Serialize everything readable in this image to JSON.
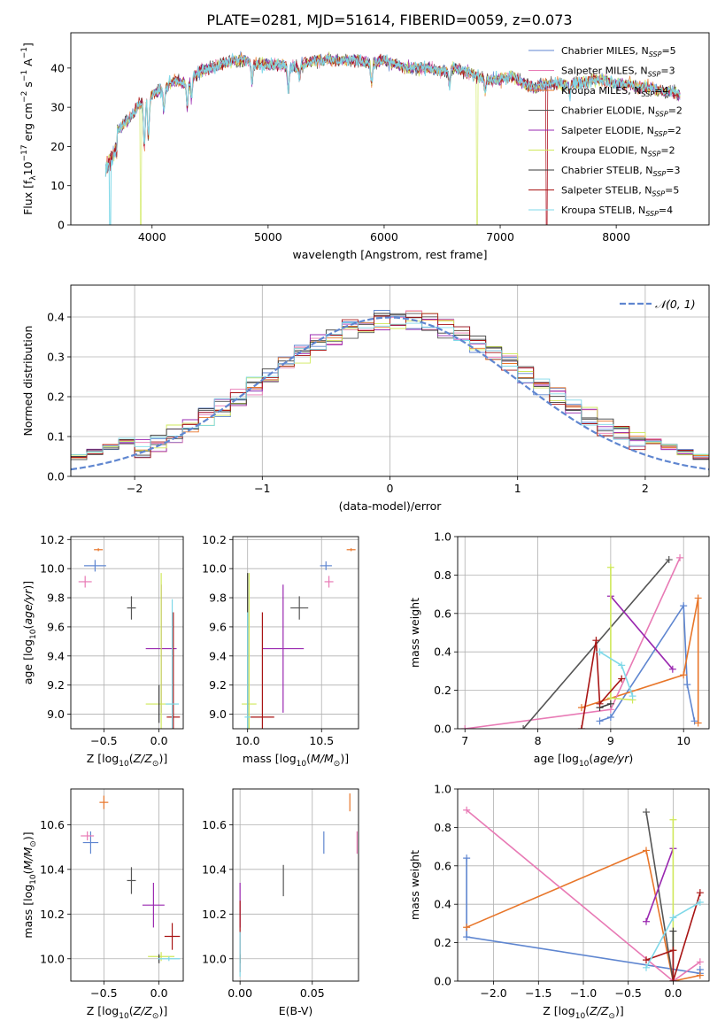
{
  "title": "PLATE=0281, MJD=51614, FIBERID=0059, z=0.073",
  "colors": {
    "c0": "#5f86d0",
    "c1": "#e8762a",
    "c2": "#e87ab5",
    "c3": "#555555",
    "c4": "#9a28b0",
    "c5": "#cfe85a",
    "c6": "#3a3a3a",
    "c7": "#a81414",
    "c8": "#7fd8e8"
  },
  "chart_data": [
    {
      "id": "spectrum",
      "type": "line",
      "xlabel": "wavelength [Angstrom, rest frame]",
      "ylabel": "Flux [f",
      "xlim": [
        3300,
        8800
      ],
      "ylim": [
        0,
        49
      ],
      "xticks": [
        4000,
        5000,
        6000,
        7000,
        8000
      ],
      "yticks": [
        0,
        10,
        20,
        30,
        40
      ],
      "legend": "top-right",
      "series": [
        {
          "name": "Chabrier MILES, N",
          "suffix": "=5",
          "color": "c0"
        },
        {
          "name": "Salpeter MILES, N",
          "suffix": "=3",
          "color": "c2"
        },
        {
          "name": "Kroupa MILES, N",
          "suffix": "=4",
          "color": "c1"
        },
        {
          "name": "Chabrier ELODIE, N",
          "suffix": "=2",
          "color": "c3"
        },
        {
          "name": "Salpeter ELODIE, N",
          "suffix": "=2",
          "color": "c4"
        },
        {
          "name": "Kroupa ELODIE, N",
          "suffix": "=2",
          "color": "c5"
        },
        {
          "name": "Chabrier STELIB, N",
          "suffix": "=3",
          "color": "c6"
        },
        {
          "name": "Salpeter STELIB, N",
          "suffix": "=5",
          "color": "c7"
        },
        {
          "name": "Kroupa STELIB, N",
          "suffix": "=4",
          "color": "c8"
        }
      ],
      "continuum": [
        [
          3600,
          19
        ],
        [
          3700,
          24
        ],
        [
          3800,
          27
        ],
        [
          3900,
          31
        ],
        [
          4000,
          33
        ],
        [
          4100,
          35
        ],
        [
          4200,
          37
        ],
        [
          4300,
          36
        ],
        [
          4400,
          39
        ],
        [
          4500,
          40
        ],
        [
          4600,
          41
        ],
        [
          4700,
          42
        ],
        [
          4800,
          42
        ],
        [
          4900,
          41
        ],
        [
          5000,
          41
        ],
        [
          5100,
          41
        ],
        [
          5200,
          40
        ],
        [
          5300,
          41
        ],
        [
          5400,
          42
        ],
        [
          5500,
          42
        ],
        [
          5600,
          42
        ],
        [
          5700,
          42
        ],
        [
          5800,
          42
        ],
        [
          5900,
          41
        ],
        [
          6000,
          42
        ],
        [
          6100,
          41
        ],
        [
          6200,
          40
        ],
        [
          6300,
          40
        ],
        [
          6400,
          40
        ],
        [
          6500,
          39
        ],
        [
          6600,
          40
        ],
        [
          6700,
          39
        ],
        [
          6800,
          38
        ],
        [
          6900,
          37
        ],
        [
          7000,
          37
        ],
        [
          7100,
          38
        ],
        [
          7200,
          36
        ],
        [
          7300,
          35
        ],
        [
          7400,
          36
        ],
        [
          7500,
          36
        ],
        [
          7600,
          36
        ],
        [
          7700,
          36
        ],
        [
          7800,
          37
        ],
        [
          7900,
          37
        ],
        [
          8000,
          36
        ],
        [
          8100,
          36
        ],
        [
          8200,
          35
        ],
        [
          8300,
          35
        ],
        [
          8400,
          34
        ],
        [
          8500,
          34
        ],
        [
          8550,
          33
        ]
      ]
    },
    {
      "id": "residuals",
      "type": "line",
      "xlabel": "(data-model)/error",
      "ylabel": "Normed distribution",
      "xlim": [
        -2.5,
        2.5
      ],
      "ylim": [
        0,
        0.48
      ],
      "xticks": [
        -2,
        -1,
        0,
        1,
        2
      ],
      "yticks": [
        0.0,
        0.1,
        0.2,
        0.3,
        0.4
      ],
      "grid": true,
      "legend": "top-right",
      "legend_label": "𝒩(0, 1)",
      "gauss": {
        "mu": 0,
        "sigma": 1,
        "color": "c0"
      }
    },
    {
      "id": "age-Z",
      "type": "scatter",
      "xlabel": "Z [log",
      "ylabel": "age  [log",
      "xlim": [
        -0.8,
        0.22
      ],
      "ylim": [
        8.9,
        10.22
      ],
      "xticks": [
        -0.5,
        0.0
      ],
      "yticks": [
        9.0,
        9.2,
        9.4,
        9.6,
        9.8,
        10.0,
        10.2
      ],
      "grid": true,
      "points": [
        {
          "x": -0.58,
          "y": 10.02,
          "xerr": 0.1,
          "yerr": 0.04,
          "color": "c0"
        },
        {
          "x": -0.55,
          "y": 10.13,
          "xerr": 0.04,
          "yerr": 0.01,
          "color": "c1"
        },
        {
          "x": -0.67,
          "y": 9.91,
          "xerr": 0.06,
          "yerr": 0.04,
          "color": "c2"
        },
        {
          "x": -0.25,
          "y": 9.73,
          "xerr": 0.04,
          "yerr": 0.08,
          "color": "c3"
        },
        {
          "x": 0.02,
          "y": 9.45,
          "xerr": 0.14,
          "yerr": 0.44,
          "color": "c4"
        },
        {
          "x": 0.02,
          "y": 9.07,
          "xerr": 0.14,
          "yerr": 0.9,
          "color": "c5"
        },
        {
          "x": 0.0,
          "y": 9.07,
          "xerr": 0.0,
          "yerr": 0.13,
          "color": "c6"
        },
        {
          "x": 0.13,
          "y": 8.98,
          "xerr": 0.06,
          "yerr": 0.72,
          "color": "c7"
        },
        {
          "x": 0.12,
          "y": 9.07,
          "xerr": 0.06,
          "yerr": 0.72,
          "color": "c8"
        }
      ]
    },
    {
      "id": "age-mass",
      "type": "scatter",
      "xlabel": "mass [log",
      "ylabel": "",
      "xlim": [
        9.9,
        10.75
      ],
      "ylim": [
        8.9,
        10.22
      ],
      "xticks": [
        10.0,
        10.5
      ],
      "yticks": [
        9.0,
        9.2,
        9.4,
        9.6,
        9.8,
        10.0,
        10.2
      ],
      "grid": true,
      "points": [
        {
          "x": 10.53,
          "y": 10.02,
          "xerr": 0.04,
          "yerr": 0.03,
          "color": "c0"
        },
        {
          "x": 10.7,
          "y": 10.13,
          "xerr": 0.03,
          "yerr": 0.01,
          "color": "c1"
        },
        {
          "x": 10.55,
          "y": 9.91,
          "xerr": 0.03,
          "yerr": 0.04,
          "color": "c2"
        },
        {
          "x": 10.35,
          "y": 9.73,
          "xerr": 0.06,
          "yerr": 0.08,
          "color": "c3"
        },
        {
          "x": 10.24,
          "y": 9.45,
          "xerr": 0.14,
          "yerr": 0.44,
          "color": "c4"
        },
        {
          "x": 10.01,
          "y": 9.07,
          "xerr": 0.05,
          "yerr": 0.9,
          "color": "c5"
        },
        {
          "x": 10.0,
          "y": 9.07,
          "xerr": 0.0,
          "yerr": 0.9,
          "color": "c6"
        },
        {
          "x": 10.1,
          "y": 8.98,
          "xerr": 0.08,
          "yerr": 0.72,
          "color": "c7"
        },
        {
          "x": 10.0,
          "y": 8.98,
          "xerr": 0.02,
          "yerr": 0.72,
          "color": "c8"
        }
      ]
    },
    {
      "id": "weight-age",
      "type": "line",
      "xlabel": "age  [log",
      "ylabel": "mass weight",
      "xlim": [
        6.9,
        10.35
      ],
      "ylim": [
        0,
        1.0
      ],
      "xticks": [
        7,
        8,
        9,
        10
      ],
      "yticks": [
        0.0,
        0.2,
        0.4,
        0.6,
        0.8,
        1.0
      ],
      "grid": true,
      "series": [
        {
          "color": "c0",
          "x": [
            8.85,
            9.0,
            10.0,
            10.05,
            10.15
          ],
          "y": [
            0.04,
            0.06,
            0.64,
            0.23,
            0.04
          ]
        },
        {
          "color": "c1",
          "x": [
            8.6,
            10.0,
            10.2,
            10.2
          ],
          "y": [
            0.11,
            0.28,
            0.68,
            0.03
          ]
        },
        {
          "color": "c2",
          "x": [
            7.0,
            9.0,
            9.95
          ],
          "y": [
            0.0,
            0.1,
            0.89
          ]
        },
        {
          "color": "c3",
          "x": [
            7.8,
            9.8
          ],
          "y": [
            0.0,
            0.88
          ]
        },
        {
          "color": "c4",
          "x": [
            9.0,
            9.85
          ],
          "y": [
            0.69,
            0.31
          ]
        },
        {
          "color": "c5",
          "x": [
            9.0,
            9.0,
            9.3
          ],
          "y": [
            0.84,
            0.16,
            0.15
          ]
        },
        {
          "color": "c6",
          "x": [
            8.85,
            9.0
          ],
          "y": [
            0.11,
            0.13
          ]
        },
        {
          "color": "c7",
          "x": [
            8.6,
            8.8,
            8.85,
            9.15
          ],
          "y": [
            0.0,
            0.46,
            0.13,
            0.26
          ]
        },
        {
          "color": "c8",
          "x": [
            8.85,
            9.15,
            9.3
          ],
          "y": [
            0.4,
            0.33,
            0.17
          ]
        }
      ]
    },
    {
      "id": "mass-Z",
      "type": "scatter",
      "xlabel": "Z [log",
      "ylabel": "mass [log",
      "xlim": [
        -0.8,
        0.22
      ],
      "ylim": [
        9.9,
        10.76
      ],
      "xticks": [
        -0.5,
        0.0
      ],
      "yticks": [
        10.0,
        10.2,
        10.4,
        10.6
      ],
      "grid": true,
      "points": [
        {
          "x": -0.62,
          "y": 10.52,
          "xerr": 0.07,
          "yerr": 0.05,
          "color": "c0"
        },
        {
          "x": -0.5,
          "y": 10.7,
          "xerr": 0.04,
          "yerr": 0.03,
          "color": "c1"
        },
        {
          "x": -0.65,
          "y": 10.55,
          "xerr": 0.06,
          "yerr": 0.02,
          "color": "c2"
        },
        {
          "x": -0.25,
          "y": 10.35,
          "xerr": 0.04,
          "yerr": 0.06,
          "color": "c3"
        },
        {
          "x": -0.05,
          "y": 10.24,
          "xerr": 0.1,
          "yerr": 0.1,
          "color": "c4"
        },
        {
          "x": 0.02,
          "y": 10.01,
          "xerr": 0.12,
          "yerr": 0.02,
          "color": "c5"
        },
        {
          "x": 0.0,
          "y": 10.0,
          "xerr": 0.0,
          "yerr": 0.02,
          "color": "c6"
        },
        {
          "x": 0.12,
          "y": 10.1,
          "xerr": 0.07,
          "yerr": 0.06,
          "color": "c7"
        },
        {
          "x": 0.09,
          "y": 10.0,
          "xerr": 0.1,
          "yerr": 0.01,
          "color": "c8"
        }
      ]
    },
    {
      "id": "mass-ebv",
      "type": "scatter",
      "xlabel": "E(B-V)",
      "ylabel": "",
      "xlim": [
        -0.005,
        0.082
      ],
      "ylim": [
        9.9,
        10.76
      ],
      "xticks": [
        0.0,
        0.05
      ],
      "yticks": [
        10.0,
        10.2,
        10.4,
        10.6
      ],
      "grid": true,
      "points": [
        {
          "x": 0.058,
          "y": 10.52,
          "xerr": 0,
          "yerr": 0.05,
          "color": "c0"
        },
        {
          "x": 0.076,
          "y": 10.7,
          "xerr": 0,
          "yerr": 0.04,
          "color": "c1"
        },
        {
          "x": 0.081,
          "y": 10.52,
          "xerr": 0,
          "yerr": 0.05,
          "color": "c2"
        },
        {
          "x": 0.03,
          "y": 10.35,
          "xerr": 0,
          "yerr": 0.07,
          "color": "c3"
        },
        {
          "x": 0.0,
          "y": 10.24,
          "xerr": 0,
          "yerr": 0.1,
          "color": "c4"
        },
        {
          "x": 0.0,
          "y": 10.0,
          "xerr": 0,
          "yerr": 0.02,
          "color": "c5"
        },
        {
          "x": 0.0,
          "y": 10.0,
          "xerr": 0,
          "yerr": 0.02,
          "color": "c6"
        },
        {
          "x": 0.0,
          "y": 10.1,
          "xerr": 0,
          "yerr": 0.16,
          "color": "c7"
        },
        {
          "x": 0.0,
          "y": 10.02,
          "xerr": 0,
          "yerr": 0.1,
          "color": "c8"
        }
      ]
    },
    {
      "id": "weight-Z",
      "type": "line",
      "xlabel": "Z [log",
      "ylabel": "mass weight",
      "xlim": [
        -2.4,
        0.4
      ],
      "ylim": [
        0,
        1.0
      ],
      "xticks": [
        -2.0,
        -1.5,
        -1.0,
        -0.5,
        0.0
      ],
      "yticks": [
        0.0,
        0.2,
        0.4,
        0.6,
        0.8,
        1.0
      ],
      "grid": true,
      "series": [
        {
          "color": "c0",
          "x": [
            -2.3,
            -2.3,
            0.3,
            0.3
          ],
          "y": [
            0.64,
            0.23,
            0.04,
            0.06
          ]
        },
        {
          "color": "c1",
          "x": [
            -2.3,
            -0.3,
            0.0,
            0.3
          ],
          "y": [
            0.28,
            0.68,
            0.0,
            0.03
          ]
        },
        {
          "color": "c2",
          "x": [
            -2.3,
            0.0,
            0.3
          ],
          "y": [
            0.89,
            0.0,
            0.1
          ]
        },
        {
          "color": "c3",
          "x": [
            -0.3,
            0.0
          ],
          "y": [
            0.88,
            0.0
          ]
        },
        {
          "color": "c4",
          "x": [
            -0.3,
            0.0
          ],
          "y": [
            0.31,
            0.69
          ]
        },
        {
          "color": "c5",
          "x": [
            0.0,
            0.0
          ],
          "y": [
            0.84,
            0.16
          ]
        },
        {
          "color": "c6",
          "x": [
            0.0,
            0.0
          ],
          "y": [
            0.0,
            0.26
          ]
        },
        {
          "color": "c7",
          "x": [
            -0.3,
            0.0,
            0.0,
            0.3
          ],
          "y": [
            0.11,
            0.16,
            0.0,
            0.46
          ]
        },
        {
          "color": "c8",
          "x": [
            -0.3,
            0.0,
            0.3
          ],
          "y": [
            0.07,
            0.33,
            0.41
          ]
        }
      ]
    }
  ]
}
